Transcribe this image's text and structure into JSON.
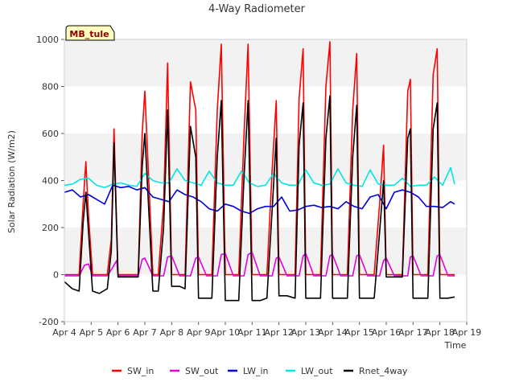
{
  "chart_data": {
    "type": "line",
    "title": "4-Way Radiometer",
    "xlabel": "Time",
    "ylabel": "Solar Radiation (W/m2)",
    "annotation": "MB_tule",
    "ylim": [
      -200,
      1000
    ],
    "yticks": [
      -200,
      0,
      200,
      400,
      600,
      800,
      1000
    ],
    "xlim": [
      4,
      19
    ],
    "xticks": [
      4,
      5,
      6,
      7,
      8,
      9,
      10,
      11,
      12,
      13,
      14,
      15,
      16,
      17,
      18,
      19
    ],
    "xtick_labels": [
      "Apr 4",
      "Apr 5",
      "Apr 6",
      "Apr 7",
      "Apr 8",
      "Apr 9",
      "Apr 10",
      "Apr 11",
      "Apr 12",
      "Apr 13",
      "Apr 14",
      "Apr 15",
      "Apr 16",
      "Apr 17",
      "Apr 18",
      "Apr 19"
    ],
    "grid": true,
    "legend_position": "bottom",
    "x_unit": "day of April",
    "series": [
      {
        "name": "SW_in",
        "color": "#ff0000",
        "x": [
          4.0,
          4.3,
          4.55,
          4.7,
          4.8,
          4.9,
          5.05,
          5.3,
          5.6,
          5.75,
          5.85,
          6.0,
          6.3,
          6.75,
          6.9,
          7.0,
          7.3,
          7.5,
          7.7,
          7.85,
          8.0,
          8.3,
          8.5,
          8.7,
          8.9,
          9.0,
          9.3,
          9.5,
          9.7,
          9.85,
          10.0,
          10.3,
          10.5,
          10.7,
          10.85,
          11.0,
          11.3,
          11.55,
          11.75,
          11.9,
          12.0,
          12.3,
          12.6,
          12.75,
          12.9,
          13.0,
          13.3,
          13.55,
          13.75,
          13.9,
          14.0,
          14.3,
          14.55,
          14.75,
          14.9,
          15.0,
          15.3,
          15.55,
          15.75,
          15.9,
          16.0,
          16.3,
          16.6,
          16.8,
          16.9,
          17.0,
          17.3,
          17.55,
          17.75,
          17.9,
          18.0,
          18.3,
          18.55
        ],
        "y": [
          0,
          0,
          0,
          300,
          480,
          250,
          0,
          0,
          0,
          150,
          620,
          0,
          0,
          0,
          600,
          780,
          0,
          0,
          300,
          900,
          0,
          0,
          0,
          820,
          700,
          0,
          0,
          0,
          700,
          980,
          0,
          0,
          0,
          600,
          980,
          0,
          0,
          0,
          450,
          740,
          0,
          0,
          0,
          750,
          960,
          0,
          0,
          0,
          800,
          990,
          0,
          0,
          0,
          700,
          940,
          0,
          0,
          0,
          300,
          550,
          0,
          0,
          0,
          780,
          830,
          0,
          0,
          0,
          850,
          960,
          0,
          0,
          0
        ]
      },
      {
        "name": "SW_out",
        "color": "#e100e1",
        "x": [
          4.0,
          4.3,
          4.55,
          4.75,
          4.9,
          5.05,
          5.3,
          5.6,
          5.8,
          5.95,
          6.0,
          6.3,
          6.75,
          6.9,
          7.0,
          7.3,
          7.5,
          7.7,
          7.85,
          8.0,
          8.3,
          8.5,
          8.7,
          8.9,
          9.0,
          9.3,
          9.5,
          9.7,
          9.85,
          10.0,
          10.3,
          10.5,
          10.7,
          10.85,
          11.0,
          11.3,
          11.55,
          11.75,
          11.9,
          12.0,
          12.3,
          12.6,
          12.75,
          12.9,
          13.0,
          13.3,
          13.55,
          13.75,
          13.9,
          14.0,
          14.3,
          14.55,
          14.75,
          14.9,
          15.0,
          15.3,
          15.55,
          15.75,
          15.9,
          16.0,
          16.3,
          16.6,
          16.8,
          16.9,
          17.0,
          17.3,
          17.55,
          17.75,
          17.9,
          18.0,
          18.3,
          18.55
        ],
        "y": [
          -5,
          -5,
          -5,
          40,
          45,
          -5,
          -5,
          -5,
          30,
          60,
          -5,
          -5,
          -5,
          65,
          70,
          -5,
          -5,
          -5,
          75,
          80,
          -5,
          -5,
          -5,
          70,
          75,
          -5,
          -5,
          -5,
          85,
          90,
          -5,
          -5,
          -5,
          85,
          95,
          -5,
          -5,
          -5,
          70,
          75,
          -5,
          -5,
          -5,
          80,
          90,
          -5,
          -5,
          -5,
          80,
          85,
          -5,
          -5,
          -5,
          80,
          85,
          -5,
          -5,
          -5,
          60,
          70,
          -5,
          -5,
          -5,
          75,
          80,
          -5,
          -5,
          -5,
          80,
          85,
          -5,
          -5
        ]
      },
      {
        "name": "LW_in",
        "color": "#0000dd",
        "x": [
          4.0,
          4.3,
          4.6,
          4.9,
          5.2,
          5.5,
          5.8,
          6.1,
          6.4,
          6.7,
          7.0,
          7.3,
          7.6,
          7.9,
          8.2,
          8.5,
          8.8,
          9.1,
          9.4,
          9.7,
          10.0,
          10.3,
          10.6,
          10.9,
          11.2,
          11.5,
          11.8,
          12.1,
          12.4,
          12.7,
          13.0,
          13.3,
          13.6,
          13.9,
          14.2,
          14.5,
          14.8,
          15.1,
          15.4,
          15.7,
          16.0,
          16.3,
          16.6,
          16.9,
          17.2,
          17.5,
          17.8,
          18.1,
          18.4,
          18.55
        ],
        "y": [
          350,
          360,
          330,
          340,
          320,
          300,
          380,
          370,
          375,
          360,
          370,
          330,
          320,
          310,
          360,
          340,
          330,
          310,
          280,
          270,
          300,
          290,
          270,
          260,
          280,
          290,
          290,
          330,
          270,
          275,
          290,
          295,
          285,
          290,
          280,
          310,
          290,
          280,
          330,
          340,
          280,
          350,
          360,
          350,
          330,
          290,
          290,
          285,
          310,
          300
        ]
      },
      {
        "name": "LW_out",
        "color": "#00e5e5",
        "x": [
          4.0,
          4.3,
          4.6,
          4.9,
          5.2,
          5.5,
          5.8,
          6.1,
          6.4,
          6.7,
          7.0,
          7.3,
          7.6,
          7.9,
          8.2,
          8.5,
          8.8,
          9.1,
          9.4,
          9.7,
          10.0,
          10.3,
          10.6,
          10.9,
          11.2,
          11.5,
          11.8,
          12.1,
          12.4,
          12.7,
          13.0,
          13.3,
          13.6,
          13.9,
          14.2,
          14.5,
          14.8,
          15.1,
          15.4,
          15.7,
          16.0,
          16.3,
          16.6,
          16.9,
          17.2,
          17.5,
          17.8,
          18.1,
          18.4,
          18.55
        ],
        "y": [
          380,
          385,
          405,
          410,
          380,
          370,
          385,
          390,
          380,
          375,
          430,
          400,
          390,
          390,
          450,
          400,
          390,
          380,
          440,
          390,
          380,
          380,
          440,
          390,
          375,
          380,
          430,
          390,
          380,
          380,
          445,
          390,
          380,
          385,
          450,
          390,
          380,
          375,
          445,
          385,
          380,
          380,
          410,
          375,
          380,
          380,
          415,
          380,
          455,
          385
        ]
      },
      {
        "name": "Rnet_4way",
        "color": "#000000",
        "x": [
          4.0,
          4.3,
          4.55,
          4.7,
          4.8,
          4.9,
          5.05,
          5.3,
          5.6,
          5.75,
          5.85,
          6.0,
          6.3,
          6.75,
          6.9,
          7.0,
          7.3,
          7.5,
          7.7,
          7.85,
          8.0,
          8.3,
          8.5,
          8.7,
          8.9,
          9.0,
          9.3,
          9.5,
          9.7,
          9.85,
          10.0,
          10.3,
          10.5,
          10.7,
          10.85,
          11.0,
          11.3,
          11.55,
          11.75,
          11.9,
          12.0,
          12.3,
          12.6,
          12.75,
          12.9,
          13.0,
          13.3,
          13.55,
          13.75,
          13.9,
          14.0,
          14.3,
          14.55,
          14.75,
          14.9,
          15.0,
          15.3,
          15.55,
          15.75,
          15.9,
          16.0,
          16.3,
          16.6,
          16.8,
          16.9,
          17.0,
          17.3,
          17.55,
          17.75,
          17.9,
          18.0,
          18.3,
          18.55
        ],
        "y": [
          -30,
          -60,
          -70,
          220,
          350,
          180,
          -70,
          -80,
          -60,
          100,
          560,
          -10,
          -10,
          -10,
          460,
          600,
          -70,
          -70,
          200,
          700,
          -50,
          -50,
          -60,
          630,
          500,
          -100,
          -100,
          -100,
          500,
          740,
          -110,
          -110,
          -110,
          420,
          740,
          -110,
          -110,
          -100,
          280,
          580,
          -90,
          -90,
          -100,
          550,
          730,
          -100,
          -100,
          -100,
          580,
          760,
          -100,
          -100,
          -100,
          500,
          720,
          -100,
          -100,
          -100,
          180,
          400,
          -10,
          -10,
          -10,
          580,
          620,
          -100,
          -100,
          -100,
          620,
          730,
          -100,
          -100,
          -95
        ]
      }
    ]
  }
}
